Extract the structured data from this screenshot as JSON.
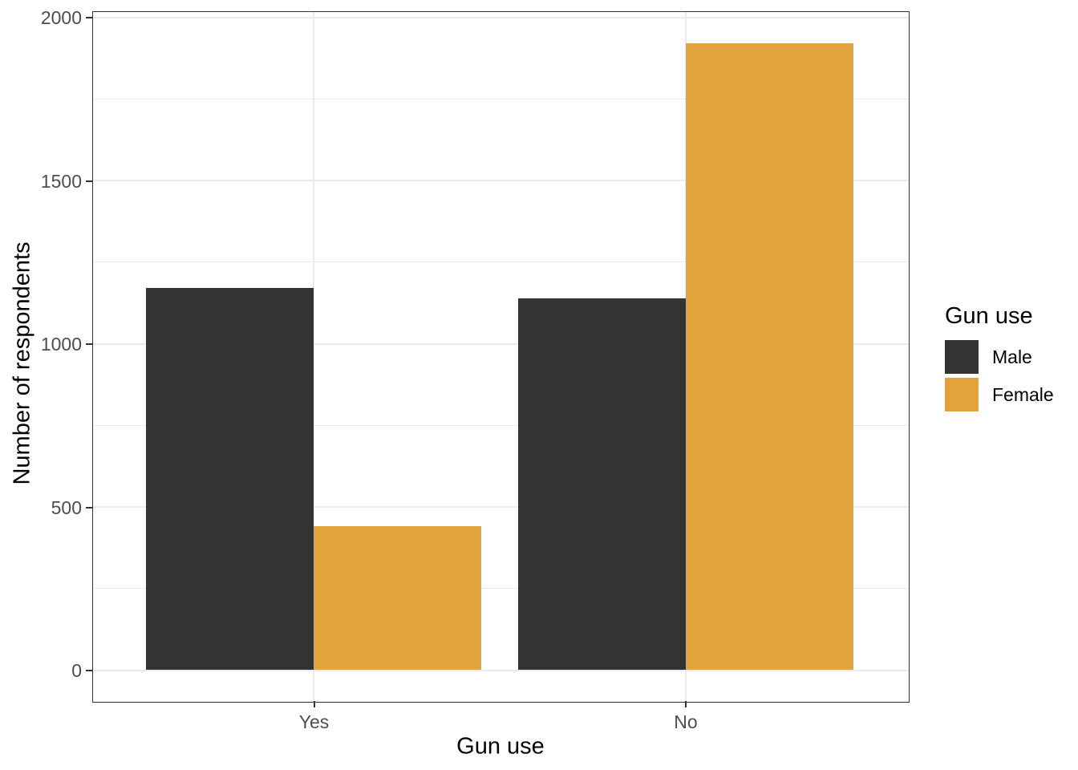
{
  "chart_data": {
    "type": "bar",
    "grouped": true,
    "title": "",
    "xlabel": "Gun use",
    "ylabel": "Number of respondents",
    "categories": [
      "Yes",
      "No"
    ],
    "series": [
      {
        "name": "Male",
        "color": "#333333",
        "values": [
          1170,
          1140
        ]
      },
      {
        "name": "Female",
        "color": "#E2A33C",
        "values": [
          440,
          1920
        ]
      }
    ],
    "ylim": [
      0,
      2000
    ],
    "yticks": [
      0,
      500,
      1000,
      1500,
      2000
    ],
    "ytick_labels": [
      "0",
      "500",
      "1000",
      "1500",
      "2000"
    ],
    "yticks_minor": [
      250,
      750,
      1250,
      1750
    ],
    "grid": true,
    "grid_color": "#EBEBEB",
    "panel_border_color": "#333333",
    "tick_label_color": "#4D4D4D",
    "axis_title_color": "#000000",
    "background_color": "#FFFFFF",
    "legend": {
      "title": "Gun use",
      "position": "right",
      "entries": [
        "Male",
        "Female"
      ]
    }
  }
}
